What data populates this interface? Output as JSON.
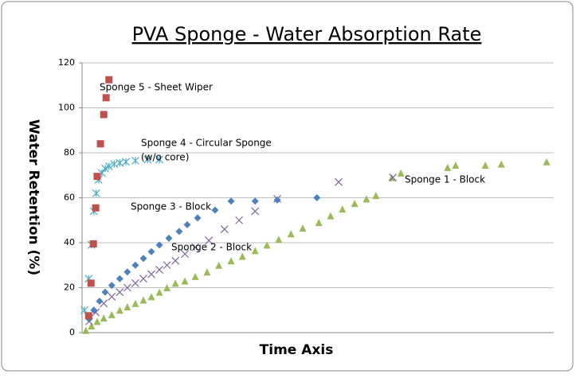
{
  "chart_data": {
    "type": "scatter",
    "title": "PVA Sponge - Water Absorption Rate",
    "x_label": "Time Axis",
    "y_label": "Water Retention (%)",
    "xlim": [
      0,
      100
    ],
    "ylim": [
      0,
      120
    ],
    "yticks": [
      0,
      20,
      40,
      60,
      80,
      100,
      120
    ],
    "grid": true,
    "series": [
      {
        "name": "Sponge 1 - Block",
        "color": "#9bbb59",
        "marker": "triangle",
        "x": [
          0.8,
          2,
          3.2,
          4.6,
          6.3,
          8,
          9.6,
          11.3,
          13,
          14.7,
          16.4,
          18,
          19.8,
          21.8,
          24,
          26.5,
          29,
          31.6,
          34,
          36.7,
          39.2,
          41.7,
          44.3,
          46.8,
          50.2,
          52.7,
          55.2,
          57.8,
          60.3,
          62.3,
          65.7,
          67.6,
          77.5,
          79.2,
          85.5,
          88.9,
          98.5
        ],
        "values": [
          1,
          3,
          5,
          6.5,
          8,
          10,
          11.5,
          13,
          14.5,
          16,
          18,
          20,
          22,
          23,
          25,
          27,
          30,
          32,
          34,
          36.5,
          39,
          41.5,
          44,
          46.5,
          49,
          52,
          55,
          57.5,
          59.5,
          61,
          69,
          71,
          73.5,
          74.5,
          74.5,
          75,
          76
        ]
      },
      {
        "name": "Sponge 2 - Block",
        "color": "#8064a2",
        "marker": "x",
        "x": [
          1.5,
          2.9,
          4.6,
          6.3,
          8,
          9.6,
          11.3,
          13,
          14.7,
          16.4,
          18,
          19.8,
          21.8,
          24,
          26.9,
          30.2,
          33.3,
          36.7,
          41.4,
          54.4,
          65.9
        ],
        "values": [
          5,
          9,
          13,
          16,
          18,
          20,
          22,
          24,
          26,
          28,
          30,
          32,
          35,
          38,
          41,
          46,
          50,
          54,
          59.5,
          67,
          69
        ]
      },
      {
        "name": "Sponge 3 - Block",
        "color": "#4f81bd",
        "marker": "diamond",
        "x": [
          1.5,
          2.5,
          3.7,
          4.9,
          6.3,
          8,
          9.6,
          11.3,
          13,
          14.7,
          16.4,
          18.4,
          20.6,
          22.3,
          24.5,
          28.2,
          31.6,
          36.7,
          41.4,
          49.8
        ],
        "values": [
          6,
          10,
          14,
          18,
          21,
          24,
          27,
          30,
          33,
          36,
          39,
          42,
          45,
          48,
          51,
          54.5,
          58.5,
          58.5,
          59,
          60
        ]
      },
      {
        "name": "Sponge 4 - Circular Sponge",
        "note": "(w/o core)",
        "color": "#4bacc6",
        "marker": "asterisk",
        "x": [
          0.5,
          1.4,
          2,
          2.5,
          3,
          3.5,
          4.2,
          4.9,
          5.7,
          6.8,
          8,
          9.3,
          11.3,
          13.9,
          16.4
        ],
        "values": [
          10,
          24,
          39,
          54,
          62,
          68,
          71,
          73,
          74,
          75,
          75.5,
          76,
          76.5,
          77,
          77
        ]
      },
      {
        "name": "Sponge 5 - Sheet Wiper",
        "color": "#c0504d",
        "marker": "square",
        "x": [
          1.4,
          1.9,
          2.4,
          2.9,
          3.2,
          3.9,
          4.6,
          5.1,
          5.7
        ],
        "values": [
          7.5,
          22,
          39.5,
          55.5,
          69.5,
          84,
          97,
          104.5,
          112.5
        ]
      }
    ]
  }
}
